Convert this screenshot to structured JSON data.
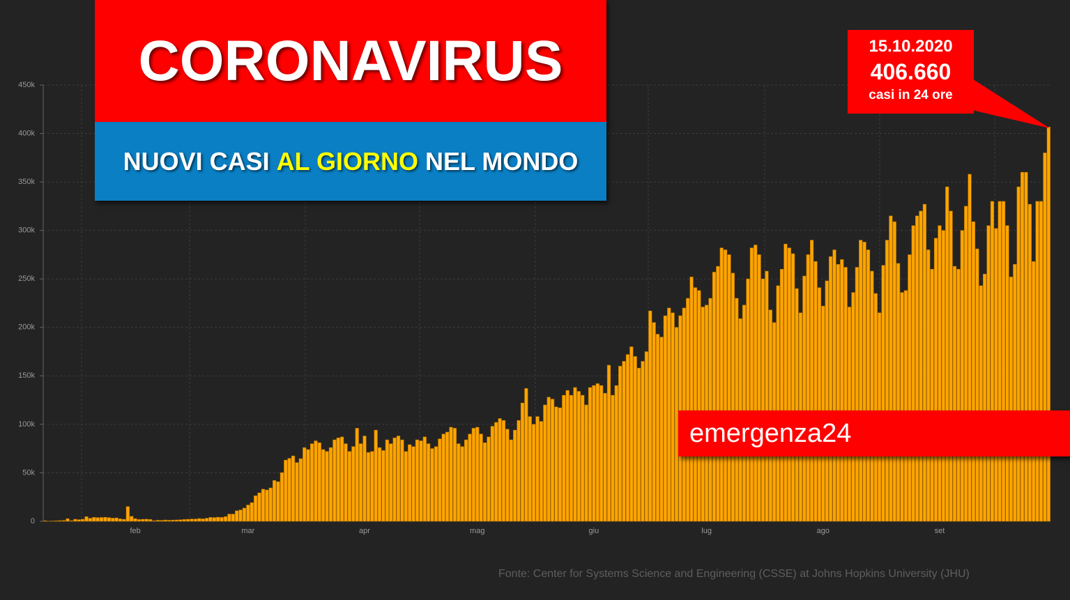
{
  "chart_data": {
    "type": "bar",
    "title": "CORONAVIRUS",
    "subtitle": [
      "NUOVI CASI",
      "AL GIORNO",
      "NEL MONDO"
    ],
    "annotation": {
      "date": "15.10.2020",
      "value": "406.660",
      "text": "casi in 24 ore"
    },
    "brand": "emergenza24",
    "source": "Fonte: Center for Systems Science and Engineering (CSSE) at Johns Hopkins University (JHU)",
    "color": "#ffa500",
    "grid": true,
    "ylim": [
      0,
      450000
    ],
    "yticks": [
      0,
      {
        "value": 50000,
        "label": "50k"
      },
      {
        "value": 100000,
        "label": "100k"
      },
      {
        "value": 150000,
        "label": "150k"
      },
      {
        "value": 200000,
        "label": "200k"
      },
      {
        "value": 250000,
        "label": "250k"
      },
      {
        "value": 300000,
        "label": "300k"
      },
      {
        "value": 350000,
        "label": "350k"
      },
      {
        "value": 400000,
        "label": "400k"
      },
      {
        "value": 450000,
        "label": "450k"
      }
    ],
    "categories": [
      null,
      null,
      null,
      null,
      null,
      null,
      null,
      null,
      null,
      null,
      null,
      null,
      null,
      null,
      null,
      null,
      null,
      null,
      null,
      null,
      null,
      null,
      null,
      null,
      "feb",
      null,
      null,
      null,
      null,
      null,
      null,
      null,
      null,
      null,
      null,
      null,
      null,
      null,
      null,
      null,
      null,
      null,
      null,
      null,
      null,
      null,
      null,
      null,
      null,
      null,
      null,
      null,
      null,
      null,
      "mar",
      null,
      null,
      null,
      null,
      null,
      null,
      null,
      null,
      null,
      null,
      null,
      null,
      null,
      null,
      null,
      null,
      null,
      null,
      null,
      null,
      null,
      null,
      null,
      null,
      null,
      null,
      null,
      null,
      null,
      null,
      "apr",
      null,
      null,
      null,
      null,
      null,
      null,
      null,
      null,
      null,
      null,
      null,
      null,
      null,
      null,
      null,
      null,
      null,
      null,
      null,
      null,
      null,
      null,
      null,
      null,
      null,
      null,
      null,
      null,
      null,
      "mag",
      null,
      null,
      null,
      null,
      null,
      null,
      null,
      null,
      null,
      null,
      null,
      null,
      null,
      null,
      null,
      null,
      null,
      null,
      null,
      null,
      null,
      null,
      null,
      null,
      null,
      null,
      null,
      null,
      null,
      null,
      "giu",
      null,
      null,
      null,
      null,
      null,
      null,
      null,
      null,
      null,
      null,
      null,
      null,
      null,
      null,
      null,
      null,
      null,
      null,
      null,
      null,
      null,
      null,
      null,
      null,
      null,
      null,
      null,
      null,
      null,
      "lug",
      null,
      null,
      null,
      null,
      null,
      null,
      null,
      null,
      null,
      null,
      null,
      null,
      null,
      null,
      null,
      null,
      null,
      null,
      null,
      null,
      null,
      null,
      null,
      null,
      null,
      null,
      null,
      null,
      null,
      null,
      "ago",
      null,
      null,
      null,
      null,
      null,
      null,
      null,
      null,
      null,
      null,
      null,
      null,
      null,
      null,
      null,
      null,
      null,
      null,
      null,
      null,
      null,
      null,
      null,
      null,
      null,
      null,
      null,
      null,
      null,
      null,
      "set",
      null,
      null,
      null,
      null,
      null,
      null,
      null,
      null,
      null,
      null,
      null,
      null,
      null,
      null,
      null,
      null,
      null,
      null,
      null,
      null,
      null,
      null,
      null,
      null,
      null,
      null,
      null,
      null,
      null
    ],
    "values": [
      555,
      98,
      288,
      493,
      684,
      809,
      2651,
      589,
      2068,
      1693,
      2111,
      4749,
      3094,
      4011,
      3743,
      3915,
      4103,
      3751,
      3218,
      3444,
      2484,
      2022,
      15153,
      5070,
      2640,
      1831,
      2049,
      2150,
      1871,
      571,
      1058,
      959,
      1300,
      1069,
      1200,
      1397,
      1539,
      1857,
      2051,
      2300,
      2280,
      2800,
      2500,
      3100,
      4000,
      3800,
      4200,
      4000,
      4800,
      7400,
      7400,
      10800,
      11700,
      13600,
      16800,
      19200,
      26300,
      29300,
      33100,
      32300,
      34400,
      42100,
      40800,
      50200,
      63100,
      64900,
      67400,
      60500,
      64600,
      76000,
      74000,
      80000,
      83000,
      81000,
      74000,
      72000,
      76000,
      84000,
      86000,
      87000,
      80000,
      72000,
      77000,
      96000,
      80000,
      88000,
      71000,
      72000,
      94000,
      76000,
      73000,
      84000,
      80000,
      86000,
      88000,
      84000,
      72000,
      79000,
      77000,
      84000,
      83000,
      87000,
      80000,
      75000,
      77000,
      85000,
      90000,
      92000,
      97000,
      96000,
      80000,
      77000,
      84000,
      90000,
      96000,
      97000,
      90000,
      81000,
      87000,
      98000,
      102000,
      106000,
      104000,
      95000,
      84000,
      94000,
      104000,
      122000,
      137000,
      108000,
      100000,
      108000,
      103000,
      120000,
      128000,
      126000,
      118000,
      117000,
      130000,
      135000,
      130000,
      138000,
      134000,
      130000,
      120000,
      138000,
      140000,
      142000,
      140000,
      132000,
      161000,
      130000,
      140000,
      160000,
      165000,
      172000,
      180000,
      170000,
      158000,
      165000,
      175000,
      217000,
      205000,
      193000,
      190000,
      212000,
      220000,
      215000,
      200000,
      212000,
      220000,
      230000,
      252000,
      241000,
      238000,
      221000,
      223000,
      230000,
      257000,
      263000,
      282000,
      280000,
      275000,
      256000,
      230000,
      209000,
      223000,
      250000,
      282000,
      285000,
      275000,
      250000,
      258000,
      218000,
      205000,
      243000,
      260000,
      286000,
      282000,
      276000,
      240000,
      215000,
      253000,
      275000,
      290000,
      268000,
      241000,
      222000,
      248000,
      273000,
      280000,
      265000,
      270000,
      262000,
      221000,
      236000,
      262000,
      290000,
      288000,
      280000,
      258000,
      235000,
      215000,
      264000,
      290000,
      315000,
      309000,
      266000,
      236000,
      238000,
      275000,
      305000,
      315000,
      320000,
      327000,
      280000,
      260000,
      292000,
      305000,
      300000,
      345000,
      320000,
      263000,
      260000,
      300000,
      325000,
      358000,
      309000,
      281000,
      243000,
      255000,
      305000,
      330000,
      302000,
      330000,
      330000,
      305000,
      252000,
      265000,
      345000,
      360000,
      360000,
      327000,
      268000,
      330000,
      330000,
      380000,
      406660
    ]
  }
}
